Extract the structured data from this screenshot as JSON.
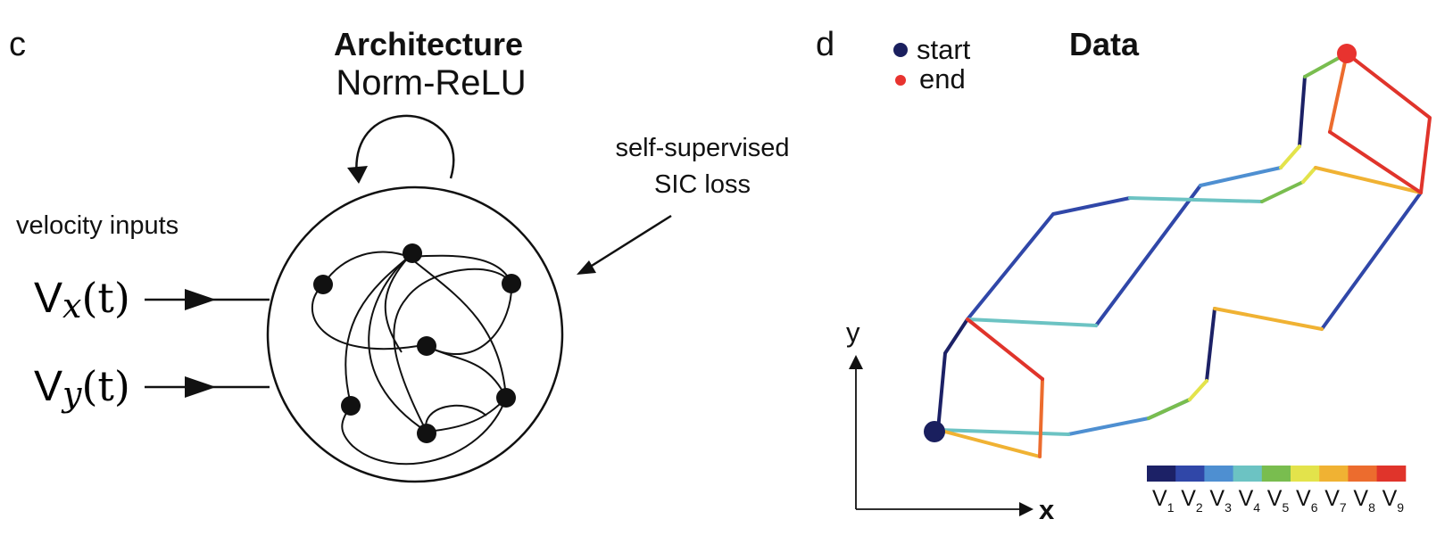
{
  "panel_c": {
    "letter": "c",
    "title": "Architecture",
    "subtitle": "Norm-ReLU",
    "loss_label_line1": "self-supervised",
    "loss_label_line2": "SIC loss",
    "inputs_label": "velocity inputs",
    "input_x": {
      "base": "V",
      "sub": "x",
      "arg": "(t)"
    },
    "input_y": {
      "base": "V",
      "sub": "y",
      "arg": "(t)"
    }
  },
  "panel_d": {
    "letter": "d",
    "title": "Data",
    "legend_start": "start",
    "legend_end": "end",
    "axis_x": "x",
    "axis_y": "y",
    "colors": {
      "start": "#1a1f5e",
      "end": "#e8332f",
      "v1": "#1c2166",
      "v2": "#3047a8",
      "v3": "#4e8fd1",
      "v4": "#6cc3c3",
      "v5": "#79bd4f",
      "v6": "#e3e34b",
      "v7": "#f0b233",
      "v8": "#ec6c2e",
      "v9": "#e0342b"
    },
    "colorbar_labels": [
      {
        "v": "V",
        "s": "1"
      },
      {
        "v": "V",
        "s": "2"
      },
      {
        "v": "V",
        "s": "3"
      },
      {
        "v": "V",
        "s": "4"
      },
      {
        "v": "V",
        "s": "5"
      },
      {
        "v": "V",
        "s": "6"
      },
      {
        "v": "V",
        "s": "7"
      },
      {
        "v": "V",
        "s": "8"
      },
      {
        "v": "V",
        "s": "9"
      }
    ]
  }
}
